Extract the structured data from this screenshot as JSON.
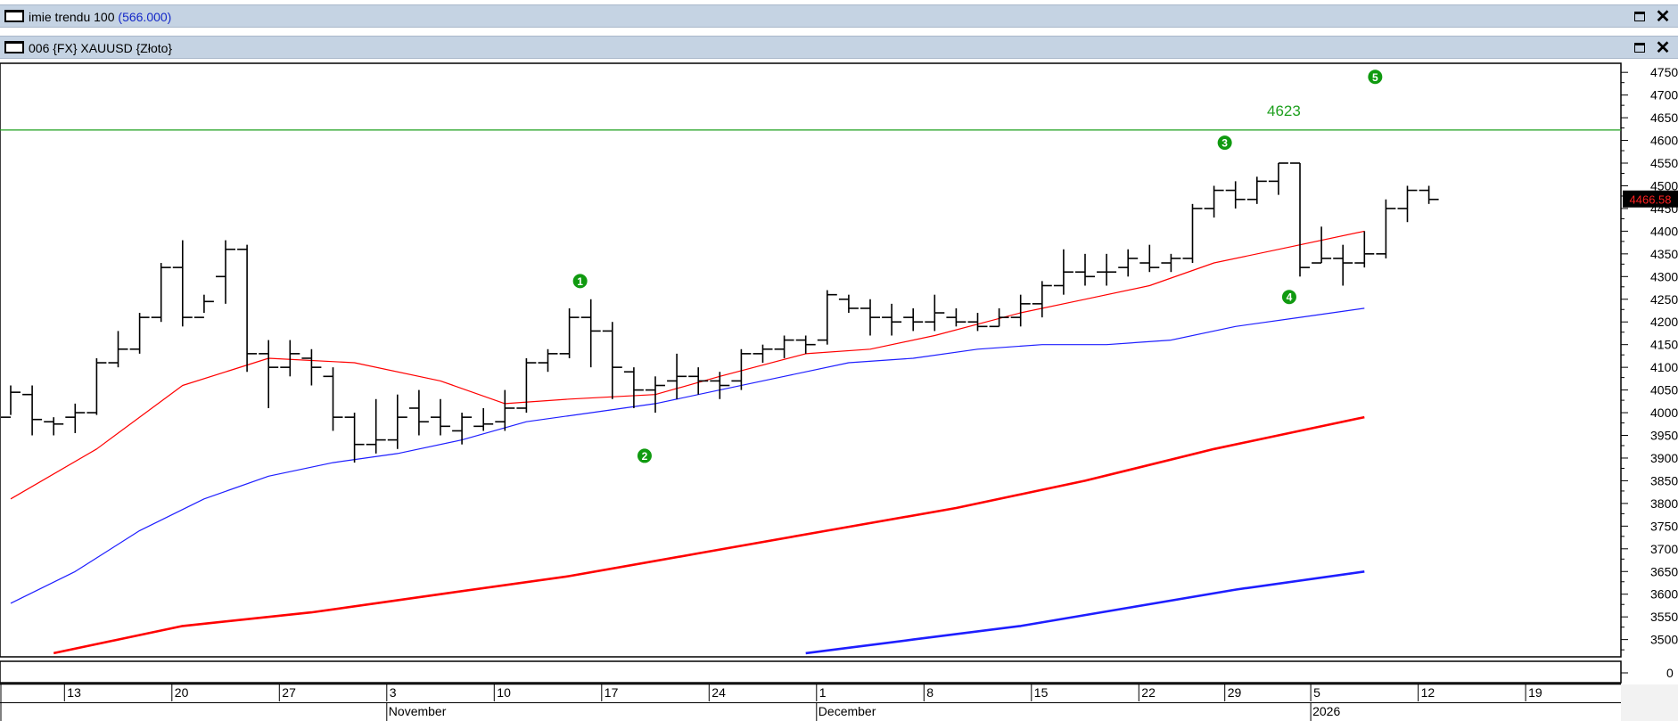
{
  "window_top": {
    "title_prefix": "imie trendu 100 ",
    "title_value": "(566.000)"
  },
  "window_main": {
    "title": "006 {FX} XAUUSD {Złoto}"
  },
  "icons": {
    "window_icon": "window-icon",
    "maximize": "maximize-icon",
    "close": "close-icon"
  },
  "colors": {
    "bars": "#000000",
    "ma_red": "#ff0000",
    "ma_blue": "#1e1eff",
    "resistance": "#1fa01f",
    "wave_marker": "#109a10",
    "price_tag_bg": "#000000",
    "price_tag_text": "#ff2020"
  },
  "chart_data": {
    "type": "bar",
    "symbol": "XAUUSD",
    "y_axis": {
      "ticks": [
        3500,
        3550,
        3600,
        3650,
        3700,
        3750,
        3800,
        3850,
        3900,
        3950,
        4000,
        4050,
        4100,
        4150,
        4200,
        4250,
        4300,
        4350,
        4400,
        4450,
        4500,
        4550,
        4600,
        4650,
        4700,
        4750
      ],
      "range": [
        3460,
        4770
      ]
    },
    "indicator_axis": {
      "ticks": [
        0
      ]
    },
    "current_price": "4466.58",
    "resistance": {
      "value": 4623,
      "label": "4623"
    },
    "x_axis": {
      "day_ticks": [
        {
          "label": "13",
          "idx": 3
        },
        {
          "label": "20",
          "idx": 8
        },
        {
          "label": "27",
          "idx": 13
        },
        {
          "label": "3",
          "idx": 18
        },
        {
          "label": "10",
          "idx": 23
        },
        {
          "label": "17",
          "idx": 28
        },
        {
          "label": "24",
          "idx": 33
        },
        {
          "label": "1",
          "idx": 38
        },
        {
          "label": "8",
          "idx": 43
        },
        {
          "label": "15",
          "idx": 48
        },
        {
          "label": "22",
          "idx": 53
        },
        {
          "label": "29",
          "idx": 57
        },
        {
          "label": "5",
          "idx": 61
        },
        {
          "label": "12",
          "idx": 66
        },
        {
          "label": "19",
          "idx": 71
        }
      ],
      "month_ticks": [
        {
          "label": "November",
          "idx": 18
        },
        {
          "label": "December",
          "idx": 38
        },
        {
          "label": "2026",
          "idx": 61
        }
      ]
    },
    "ohlc": [
      [
        3990,
        4060,
        3995,
        4045
      ],
      [
        4040,
        4060,
        3950,
        3985
      ],
      [
        3980,
        3990,
        3950,
        3975
      ],
      [
        3990,
        4020,
        3955,
        4000
      ],
      [
        4000,
        4120,
        3995,
        4110
      ],
      [
        4110,
        4180,
        4100,
        4140
      ],
      [
        4140,
        4220,
        4130,
        4210
      ],
      [
        4210,
        4330,
        4200,
        4320
      ],
      [
        4320,
        4380,
        4190,
        4210
      ],
      [
        4210,
        4260,
        4220,
        4245
      ],
      [
        4300,
        4380,
        4240,
        4360
      ],
      [
        4360,
        4370,
        4090,
        4130
      ],
      [
        4130,
        4160,
        4010,
        4100
      ],
      [
        4100,
        4160,
        4080,
        4130
      ],
      [
        4120,
        4140,
        4060,
        4100
      ],
      [
        4080,
        4100,
        3960,
        3990
      ],
      [
        3990,
        4000,
        3890,
        3930
      ],
      [
        3930,
        4030,
        3910,
        3940
      ],
      [
        3940,
        4040,
        3920,
        3990
      ],
      [
        4010,
        4050,
        3950,
        3980
      ],
      [
        3990,
        4030,
        3950,
        3970
      ],
      [
        3960,
        4000,
        3930,
        3990
      ],
      [
        3970,
        4010,
        3960,
        3975
      ],
      [
        3980,
        4050,
        3960,
        4010
      ],
      [
        4010,
        4120,
        4000,
        4110
      ],
      [
        4110,
        4140,
        4090,
        4130
      ],
      [
        4130,
        4230,
        4120,
        4210
      ],
      [
        4210,
        4250,
        4100,
        4180
      ],
      [
        4180,
        4200,
        4030,
        4100
      ],
      [
        4090,
        4100,
        4010,
        4050
      ],
      [
        4050,
        4080,
        4000,
        4060
      ],
      [
        4070,
        4130,
        4030,
        4080
      ],
      [
        4080,
        4100,
        4040,
        4070
      ],
      [
        4070,
        4090,
        4030,
        4060
      ],
      [
        4070,
        4140,
        4050,
        4130
      ],
      [
        4130,
        4150,
        4110,
        4140
      ],
      [
        4140,
        4170,
        4120,
        4160
      ],
      [
        4160,
        4170,
        4130,
        4150
      ],
      [
        4160,
        4270,
        4150,
        4260
      ],
      [
        4250,
        4260,
        4220,
        4230
      ],
      [
        4230,
        4250,
        4170,
        4210
      ],
      [
        4210,
        4240,
        4170,
        4200
      ],
      [
        4210,
        4230,
        4180,
        4200
      ],
      [
        4200,
        4260,
        4180,
        4220
      ],
      [
        4210,
        4230,
        4190,
        4200
      ],
      [
        4200,
        4220,
        4180,
        4190
      ],
      [
        4190,
        4230,
        4190,
        4210
      ],
      [
        4210,
        4260,
        4190,
        4240
      ],
      [
        4240,
        4290,
        4210,
        4280
      ],
      [
        4280,
        4360,
        4260,
        4310
      ],
      [
        4310,
        4350,
        4280,
        4300
      ],
      [
        4310,
        4350,
        4280,
        4310
      ],
      [
        4320,
        4360,
        4300,
        4340
      ],
      [
        4330,
        4370,
        4310,
        4320
      ],
      [
        4330,
        4350,
        4310,
        4340
      ],
      [
        4340,
        4460,
        4330,
        4450
      ],
      [
        4450,
        4500,
        4430,
        4490
      ],
      [
        4490,
        4510,
        4450,
        4470
      ],
      [
        4470,
        4520,
        4460,
        4510
      ],
      [
        4510,
        4550,
        4480,
        4550
      ],
      [
        4550,
        4550,
        4300,
        4320
      ],
      [
        4330,
        4410,
        4330,
        4340
      ],
      [
        4340,
        4370,
        4280,
        4330
      ],
      [
        4330,
        4400,
        4320,
        4350
      ],
      [
        4350,
        4470,
        4340,
        4450
      ],
      [
        4450,
        4500,
        4420,
        4490
      ],
      [
        4490,
        4500,
        4460,
        4470
      ]
    ],
    "ma_red_thin": [
      [
        0,
        3810
      ],
      [
        4,
        3920
      ],
      [
        8,
        4060
      ],
      [
        12,
        4120
      ],
      [
        16,
        4110
      ],
      [
        20,
        4070
      ],
      [
        23,
        4020
      ],
      [
        26,
        4030
      ],
      [
        30,
        4040
      ],
      [
        33,
        4080
      ],
      [
        37,
        4130
      ],
      [
        40,
        4140
      ],
      [
        43,
        4170
      ],
      [
        47,
        4220
      ],
      [
        50,
        4250
      ],
      [
        53,
        4280
      ],
      [
        56,
        4330
      ],
      [
        59,
        4360
      ],
      [
        63,
        4400
      ]
    ],
    "ma_blue_thin": [
      [
        0,
        3580
      ],
      [
        3,
        3650
      ],
      [
        6,
        3740
      ],
      [
        9,
        3810
      ],
      [
        12,
        3860
      ],
      [
        15,
        3890
      ],
      [
        18,
        3910
      ],
      [
        21,
        3940
      ],
      [
        24,
        3980
      ],
      [
        27,
        4000
      ],
      [
        30,
        4020
      ],
      [
        33,
        4050
      ],
      [
        36,
        4080
      ],
      [
        39,
        4110
      ],
      [
        42,
        4120
      ],
      [
        45,
        4140
      ],
      [
        48,
        4150
      ],
      [
        51,
        4150
      ],
      [
        54,
        4160
      ],
      [
        57,
        4190
      ],
      [
        60,
        4210
      ],
      [
        63,
        4230
      ]
    ],
    "ma_red_thick": [
      [
        2,
        3470
      ],
      [
        8,
        3530
      ],
      [
        14,
        3560
      ],
      [
        20,
        3600
      ],
      [
        26,
        3640
      ],
      [
        32,
        3690
      ],
      [
        38,
        3740
      ],
      [
        44,
        3790
      ],
      [
        50,
        3850
      ],
      [
        56,
        3920
      ],
      [
        60,
        3960
      ],
      [
        63,
        3990
      ]
    ],
    "ma_blue_thick": [
      [
        37,
        3470
      ],
      [
        42,
        3500
      ],
      [
        47,
        3530
      ],
      [
        52,
        3570
      ],
      [
        57,
        3610
      ],
      [
        63,
        3650
      ]
    ],
    "wave_points": [
      {
        "label": "1",
        "idx": 26.5,
        "y": 4290
      },
      {
        "label": "2",
        "idx": 29.5,
        "y": 3905
      },
      {
        "label": "3",
        "idx": 56.5,
        "y": 4595
      },
      {
        "label": "4",
        "idx": 59.5,
        "y": 4255
      },
      {
        "label": "5",
        "idx": 63.5,
        "y": 4740
      }
    ]
  }
}
